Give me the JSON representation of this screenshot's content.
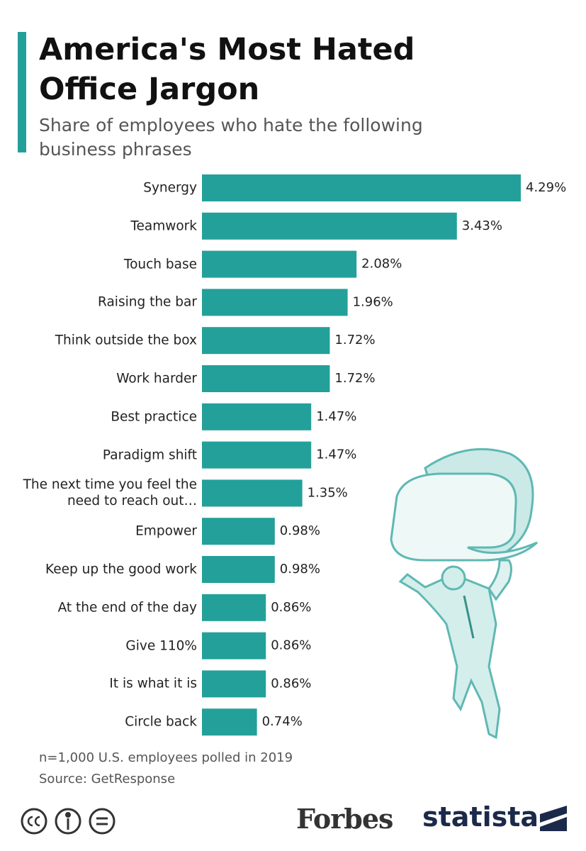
{
  "chart_data": {
    "type": "bar",
    "orientation": "horizontal",
    "title": "America's Most Hated Office Jargon",
    "subtitle": "Share of employees who hate the following business phrases",
    "categories": [
      "Synergy",
      "Teamwork",
      "Touch base",
      "Raising the bar",
      "Think outside the box",
      "Work harder",
      "Best practice",
      "Paradigm shift",
      "The next time you feel the need to reach out…",
      "Empower",
      "Keep up the good work",
      "At the end of the day",
      "Give 110%",
      "It is what it is",
      "Circle back"
    ],
    "values": [
      4.29,
      3.43,
      2.08,
      1.96,
      1.72,
      1.72,
      1.47,
      1.47,
      1.35,
      0.98,
      0.98,
      0.86,
      0.86,
      0.86,
      0.74
    ],
    "value_labels": [
      "4.29%",
      "3.43%",
      "2.08%",
      "1.96%",
      "1.72%",
      "1.72%",
      "1.47%",
      "1.47%",
      "1.35%",
      "0.98%",
      "0.98%",
      "0.86%",
      "0.86%",
      "0.86%",
      "0.74%"
    ],
    "color": "#23a09a",
    "notes": [
      "n=1,000 U.S. employees polled in 2019",
      "Source: GetResponse"
    ]
  },
  "branding": {
    "publisher": "Forbes",
    "logo": "statista"
  }
}
